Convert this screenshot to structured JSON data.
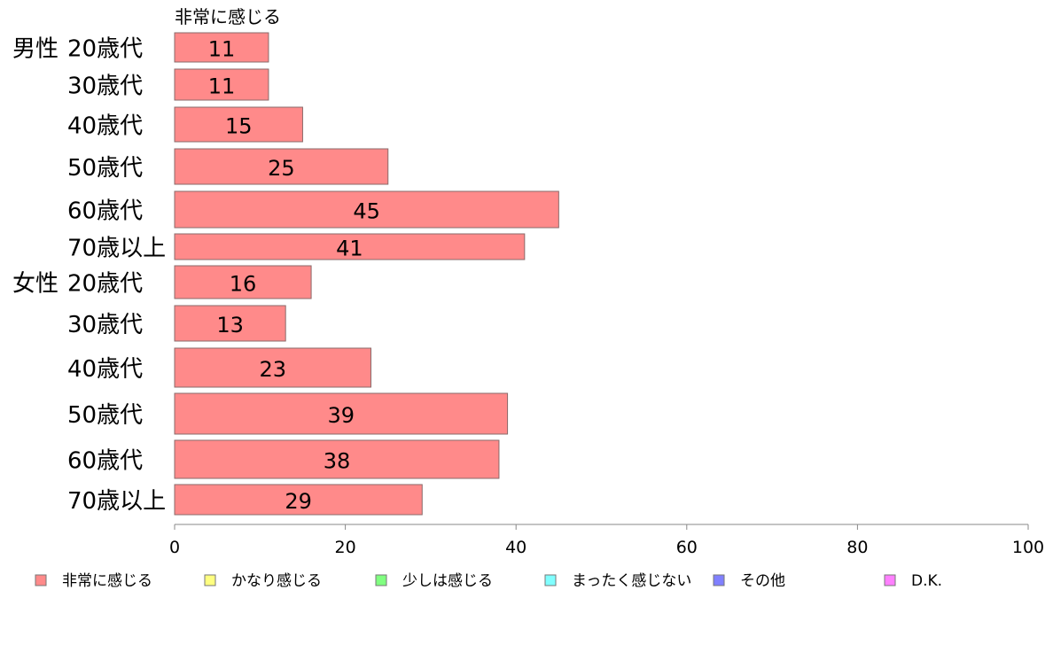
{
  "chart_data": {
    "type": "bar",
    "orientation": "horizontal",
    "series_header": "非常に感じる",
    "groups": [
      {
        "label": "男性",
        "start": 0
      },
      {
        "label": "女性",
        "start": 6
      }
    ],
    "categories": [
      "20歳代",
      "30歳代",
      "40歳代",
      "50歳代",
      "60歳代",
      "70歳以上",
      "20歳代",
      "30歳代",
      "40歳代",
      "50歳代",
      "60歳代",
      "70歳以上"
    ],
    "series": [
      {
        "name": "非常に感じる",
        "color": "#ff8a8a",
        "values": [
          11,
          11,
          15,
          25,
          45,
          41,
          16,
          13,
          23,
          39,
          38,
          29
        ]
      }
    ],
    "xlim": [
      0,
      100
    ],
    "xticks": [
      "0",
      "20",
      "40",
      "60",
      "80",
      "100"
    ],
    "grid": false,
    "legend_position": "bottom",
    "legend": [
      {
        "label": "非常に感じる",
        "color": "#ff8a8a"
      },
      {
        "label": "かなり感じる",
        "color": "#ffff80"
      },
      {
        "label": "少しは感じる",
        "color": "#80ff80"
      },
      {
        "label": "まったく感じない",
        "color": "#80ffff"
      },
      {
        "label": "その他",
        "color": "#8080ff"
      },
      {
        "label": "D.K.",
        "color": "#ff80ff"
      }
    ]
  }
}
